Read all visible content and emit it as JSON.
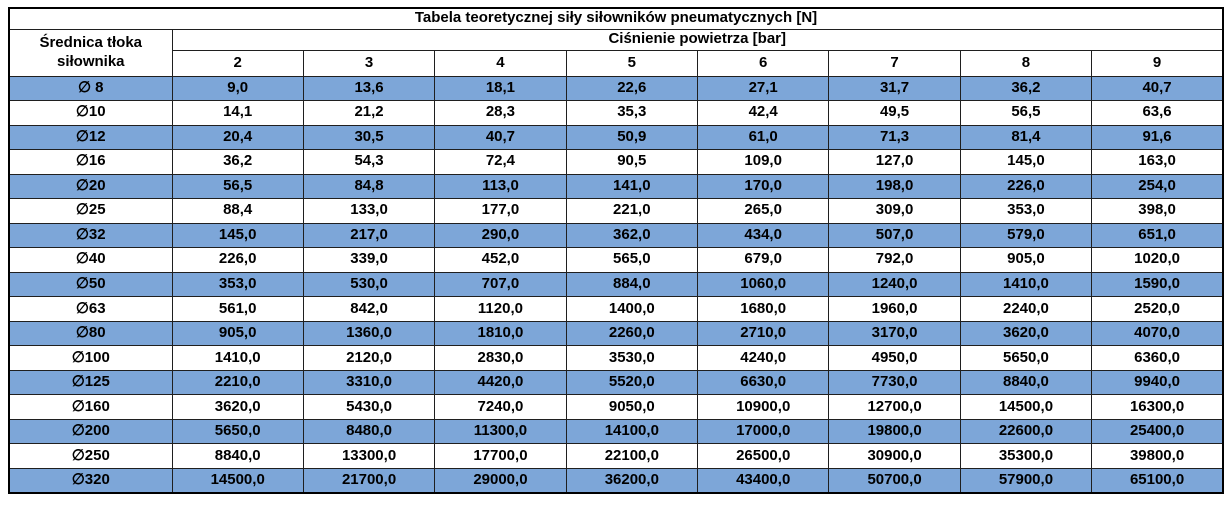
{
  "table": {
    "title": "Tabela teoretycznej siły siłowników pneumatycznych [N]",
    "row_header": "Średnica tłoka siłownika",
    "column_group_header": "Ciśnienie powietrza [bar]",
    "pressures": [
      "2",
      "3",
      "4",
      "5",
      "6",
      "7",
      "8",
      "9"
    ],
    "rows": [
      {
        "d": "∅ 8",
        "values": [
          "9,0",
          "13,6",
          "18,1",
          "22,6",
          "27,1",
          "31,7",
          "36,2",
          "40,7"
        ]
      },
      {
        "d": "∅10",
        "values": [
          "14,1",
          "21,2",
          "28,3",
          "35,3",
          "42,4",
          "49,5",
          "56,5",
          "63,6"
        ]
      },
      {
        "d": "∅12",
        "values": [
          "20,4",
          "30,5",
          "40,7",
          "50,9",
          "61,0",
          "71,3",
          "81,4",
          "91,6"
        ]
      },
      {
        "d": "∅16",
        "values": [
          "36,2",
          "54,3",
          "72,4",
          "90,5",
          "109,0",
          "127,0",
          "145,0",
          "163,0"
        ]
      },
      {
        "d": "∅20",
        "values": [
          "56,5",
          "84,8",
          "113,0",
          "141,0",
          "170,0",
          "198,0",
          "226,0",
          "254,0"
        ]
      },
      {
        "d": "∅25",
        "values": [
          "88,4",
          "133,0",
          "177,0",
          "221,0",
          "265,0",
          "309,0",
          "353,0",
          "398,0"
        ]
      },
      {
        "d": "∅32",
        "values": [
          "145,0",
          "217,0",
          "290,0",
          "362,0",
          "434,0",
          "507,0",
          "579,0",
          "651,0"
        ]
      },
      {
        "d": "∅40",
        "values": [
          "226,0",
          "339,0",
          "452,0",
          "565,0",
          "679,0",
          "792,0",
          "905,0",
          "1020,0"
        ]
      },
      {
        "d": "∅50",
        "values": [
          "353,0",
          "530,0",
          "707,0",
          "884,0",
          "1060,0",
          "1240,0",
          "1410,0",
          "1590,0"
        ]
      },
      {
        "d": "∅63",
        "values": [
          "561,0",
          "842,0",
          "1120,0",
          "1400,0",
          "1680,0",
          "1960,0",
          "2240,0",
          "2520,0"
        ]
      },
      {
        "d": "∅80",
        "values": [
          "905,0",
          "1360,0",
          "1810,0",
          "2260,0",
          "2710,0",
          "3170,0",
          "3620,0",
          "4070,0"
        ]
      },
      {
        "d": "∅100",
        "values": [
          "1410,0",
          "2120,0",
          "2830,0",
          "3530,0",
          "4240,0",
          "4950,0",
          "5650,0",
          "6360,0"
        ]
      },
      {
        "d": "∅125",
        "values": [
          "2210,0",
          "3310,0",
          "4420,0",
          "5520,0",
          "6630,0",
          "7730,0",
          "8840,0",
          "9940,0"
        ]
      },
      {
        "d": "∅160",
        "values": [
          "3620,0",
          "5430,0",
          "7240,0",
          "9050,0",
          "10900,0",
          "12700,0",
          "14500,0",
          "16300,0"
        ]
      },
      {
        "d": "∅200",
        "values": [
          "5650,0",
          "8480,0",
          "11300,0",
          "14100,0",
          "17000,0",
          "19800,0",
          "22600,0",
          "25400,0"
        ]
      },
      {
        "d": "∅250",
        "values": [
          "8840,0",
          "13300,0",
          "17700,0",
          "22100,0",
          "26500,0",
          "30900,0",
          "35300,0",
          "39800,0"
        ]
      },
      {
        "d": "∅320",
        "values": [
          "14500,0",
          "21700,0",
          "29000,0",
          "36200,0",
          "43400,0",
          "50700,0",
          "57900,0",
          "65100,0"
        ]
      }
    ]
  },
  "colors": {
    "stripe_blue": "#7da6d8",
    "border_dark": "#1f1f1f",
    "outer_border": "#000000",
    "background": "#ffffff",
    "text": "#000000"
  }
}
